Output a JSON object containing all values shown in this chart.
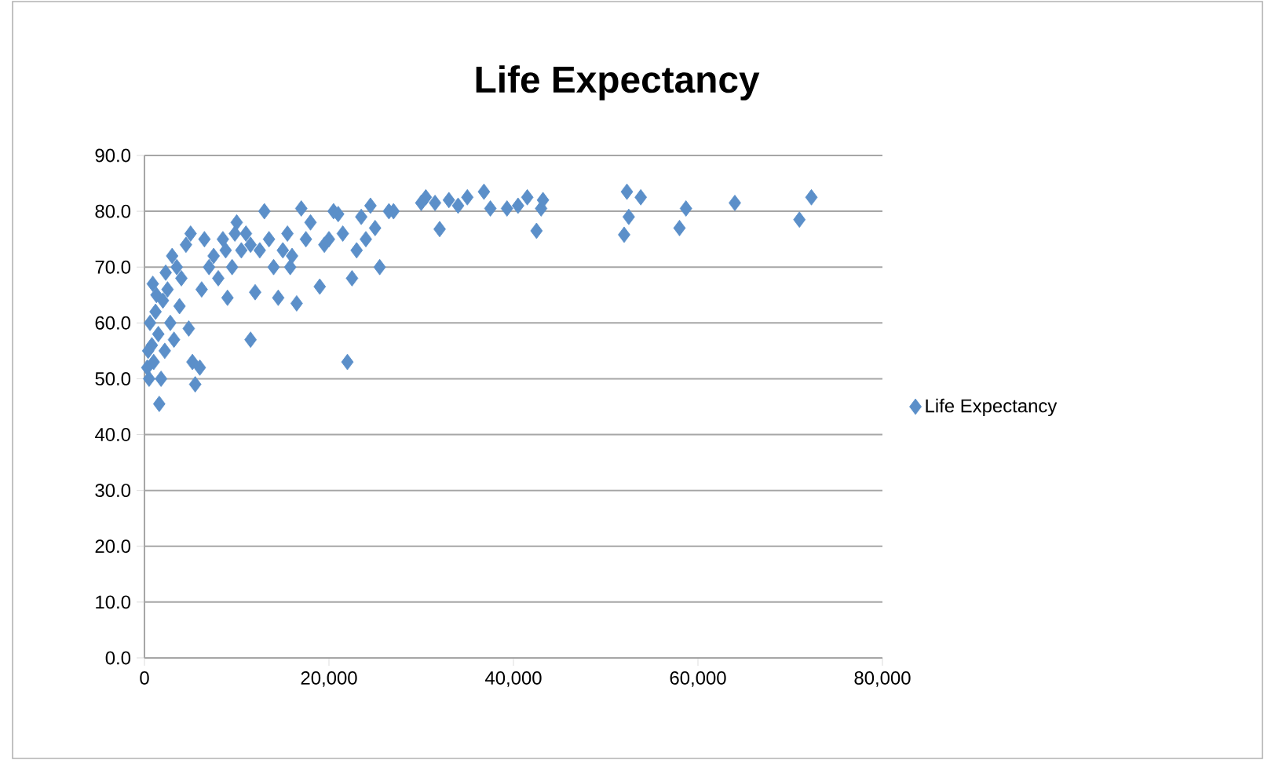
{
  "chart_data": {
    "type": "scatter",
    "title": "Life Expectancy",
    "series": [
      {
        "name": "Life Expectancy",
        "color": "#5b8fc9",
        "x": [
          52300,
          52500,
          53800,
          52000,
          58000,
          58700,
          64000,
          71000,
          72300,
          42500,
          43000,
          43200,
          41500,
          39300,
          40500,
          36800,
          35000,
          34000,
          33000,
          32000,
          31500,
          30500,
          30000,
          37500,
          26500,
          25000,
          25500,
          24500,
          24000,
          23000,
          22500,
          22000,
          21000,
          20500,
          20000,
          19000,
          18000,
          17000,
          16500,
          16000,
          15500,
          15000,
          14500,
          14000,
          13500,
          13000,
          12500,
          12000,
          11500,
          11000,
          10500,
          10000,
          9500,
          9000,
          8500,
          8000,
          7500,
          7000,
          6500,
          6000,
          5500,
          5200,
          5000,
          4800,
          4500,
          4000,
          3800,
          3500,
          3000,
          2800,
          2500,
          2200,
          2000,
          1800,
          1600,
          1500,
          1200,
          1000,
          900,
          800,
          600,
          500,
          400,
          300,
          1300,
          2300,
          3200,
          6200,
          8800,
          9800,
          11500,
          17500,
          19500,
          21500,
          23500,
          15800,
          27000
        ],
        "values": [
          83.5,
          79,
          82.5,
          75.8,
          77,
          80.5,
          81.5,
          78.5,
          82.5,
          76.5,
          80.5,
          82,
          82.5,
          80.5,
          81,
          83.5,
          82.5,
          81,
          82,
          76.8,
          81.5,
          82.5,
          81.5,
          80.5,
          80,
          77,
          70,
          81,
          75,
          73,
          68,
          53,
          79.5,
          80,
          75,
          66.5,
          78,
          80.5,
          63.5,
          72,
          76,
          73,
          64.5,
          70,
          75,
          80,
          73,
          65.5,
          57,
          76,
          73,
          78,
          70,
          64.5,
          75,
          68,
          72,
          70,
          75,
          52,
          49,
          53,
          76,
          59,
          74,
          68,
          63,
          70,
          72,
          60,
          66,
          55,
          64,
          50,
          45.5,
          58,
          62,
          53,
          67,
          56,
          60,
          50,
          55,
          52,
          65,
          69,
          57,
          66,
          73,
          76,
          74,
          75,
          74,
          76,
          79,
          70,
          80
        ]
      }
    ],
    "xlim": [
      0,
      80000
    ],
    "xticks": [
      {
        "value": 0,
        "label": "0"
      },
      {
        "value": 20000,
        "label": "20,000"
      },
      {
        "value": 40000,
        "label": "40,000"
      },
      {
        "value": 60000,
        "label": "60,000"
      },
      {
        "value": 80000,
        "label": "80,000"
      }
    ],
    "ylim": [
      0,
      90
    ],
    "yticks": [
      {
        "value": 0,
        "label": "0.0"
      },
      {
        "value": 10,
        "label": "10.0"
      },
      {
        "value": 20,
        "label": "20.0"
      },
      {
        "value": 30,
        "label": "30.0"
      },
      {
        "value": 40,
        "label": "40.0"
      },
      {
        "value": 50,
        "label": "50.0"
      },
      {
        "value": 60,
        "label": "60.0"
      },
      {
        "value": 70,
        "label": "70.0"
      },
      {
        "value": 80,
        "label": "80.0"
      },
      {
        "value": 90,
        "label": "90.0"
      }
    ],
    "grid": "y",
    "legend": "right",
    "marker": "diamond"
  }
}
